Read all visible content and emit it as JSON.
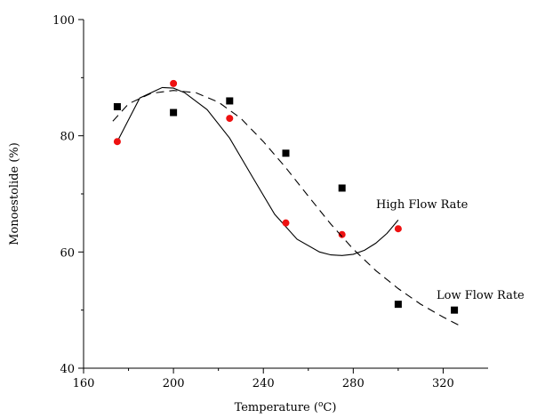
{
  "chart_data": {
    "type": "scatter",
    "xlabel_main": "Temperature (",
    "xlabel_sup": "o",
    "xlabel_tail": "C)",
    "ylabel": "Monoestolide (%)",
    "xlim": [
      160,
      340
    ],
    "ylim": [
      40,
      100
    ],
    "x_ticks": [
      160,
      200,
      240,
      280,
      320
    ],
    "y_ticks": [
      40,
      60,
      80,
      100
    ],
    "grid": false,
    "series": [
      {
        "marker": "circle",
        "color": "#ee1111",
        "line_style": "solid",
        "x": [
          175,
          200,
          225,
          250,
          275,
          300
        ],
        "y": [
          79,
          89,
          83,
          65,
          63,
          64
        ],
        "fit_line": {
          "x": [
            175,
            185,
            195,
            200,
            205,
            215,
            225,
            235,
            245,
            255,
            265,
            270,
            275,
            280,
            285,
            290,
            295,
            300
          ],
          "y": [
            79,
            86.5,
            88.3,
            88.2,
            87.4,
            84.5,
            79.6,
            73,
            66.5,
            62.2,
            60,
            59.5,
            59.4,
            59.6,
            60.3,
            61.5,
            63.2,
            65.5
          ]
        }
      },
      {
        "marker": "square",
        "color": "#000000",
        "line_style": "dashed",
        "x": [
          175,
          200,
          225,
          250,
          275,
          300,
          325
        ],
        "y": [
          85,
          84,
          86,
          77,
          71,
          51,
          50
        ],
        "fit_line": {
          "x": [
            173,
            180,
            190,
            200,
            210,
            220,
            230,
            240,
            250,
            260,
            270,
            280,
            290,
            300,
            310,
            320,
            328
          ],
          "y": [
            82.5,
            85.5,
            87.3,
            87.8,
            87.4,
            85.8,
            83,
            79,
            74.5,
            69.6,
            64.8,
            60.5,
            56.8,
            53.7,
            51,
            48.8,
            47.2
          ]
        }
      }
    ],
    "annotations": [
      {
        "text": "High Flow Rate",
        "x": 301,
        "y": 68.5
      },
      {
        "text": "Low Flow Rate",
        "x": 320,
        "y": 52
      }
    ]
  }
}
